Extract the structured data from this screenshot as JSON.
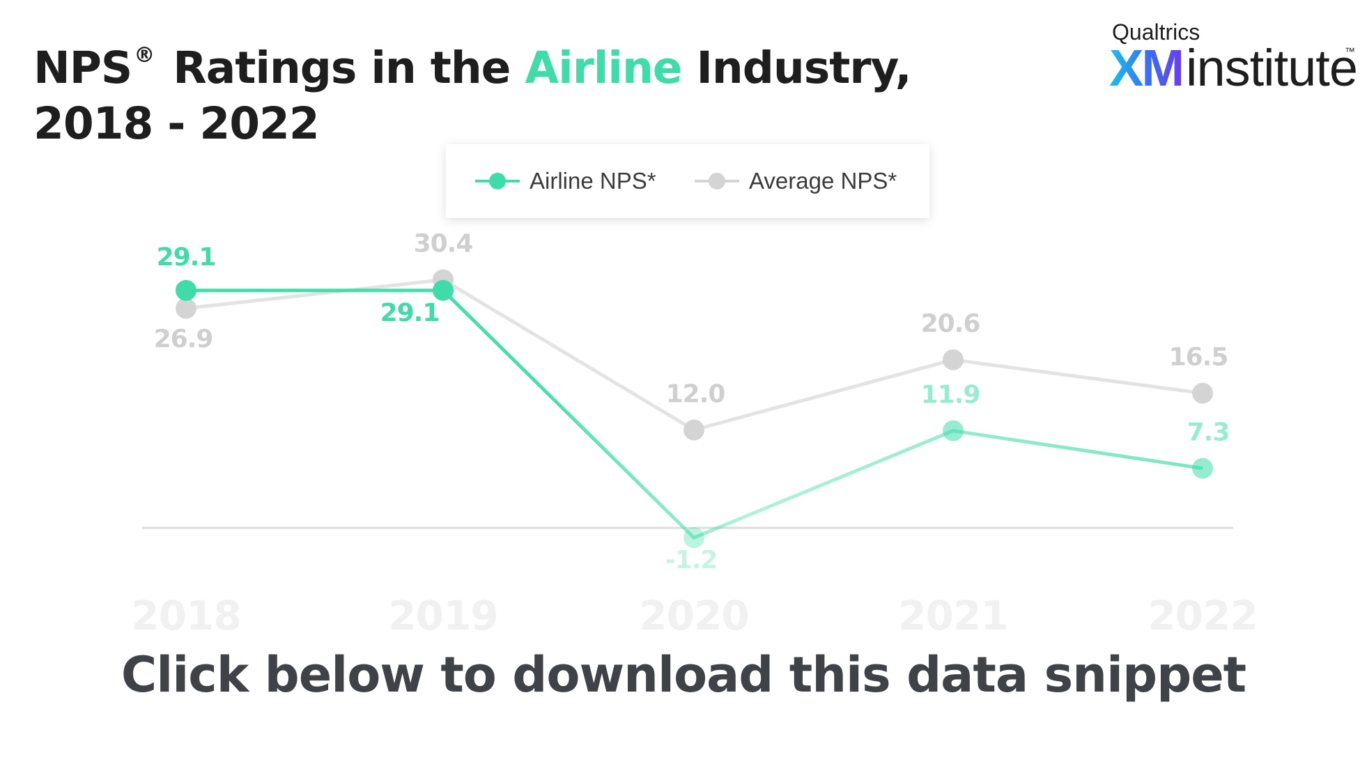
{
  "title": {
    "prefix": "NPS",
    "registered": "®",
    "middle": " Ratings in the ",
    "accent": "Airline",
    "suffix": " Industry,",
    "line2": "2018 - 2022"
  },
  "logo": {
    "brand": "Qualtrics",
    "xm": "XM",
    "name": "institute",
    "tm": "™"
  },
  "footer": {
    "cta": "Click below to download this data snippet"
  },
  "colors": {
    "airline": "#3fdcaa",
    "average": "#d4d4d4",
    "title_accent": "#3fdcaa",
    "text": "#1e1e1e"
  },
  "chart_data": {
    "type": "line",
    "title": "NPS® Ratings in the Airline Industry, 2018 - 2022",
    "categories": [
      "2018",
      "2019",
      "2020",
      "2021",
      "2022"
    ],
    "series": [
      {
        "name": "Airline NPS*",
        "color": "#3fdcaa",
        "values": [
          29.1,
          29.1,
          -1.2,
          11.9,
          7.3
        ],
        "labels": [
          "29.1",
          "29.1",
          "-1.2",
          "11.9",
          "7.3"
        ]
      },
      {
        "name": "Average NPS*",
        "color": "#d4d4d4",
        "values": [
          26.9,
          30.4,
          12.0,
          20.6,
          16.5
        ],
        "labels": [
          "26.9",
          "30.4",
          "12.0",
          "20.6",
          "16.5"
        ]
      }
    ],
    "zero_line": true,
    "grid": false,
    "legend": "top-center",
    "xlabel": "",
    "ylabel": ""
  }
}
